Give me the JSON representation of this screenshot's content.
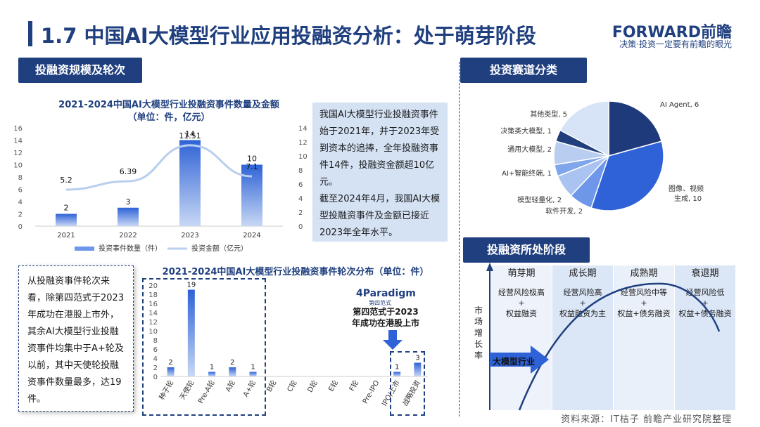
{
  "header": {
    "title": "1.7 中国AI大模型行业应用投融资分析：处于萌芽阶段",
    "logo": "FORWARD前瞻",
    "logo_tagline": "决策·投资一定要有前瞻的眼光"
  },
  "sections": {
    "scale": "投融资规模及轮次",
    "track": "投资赛道分类",
    "stage": "投融资所处阶段"
  },
  "chart1": {
    "title_line1": "2021-2024中国AI大模型行业投融资事件数量及金额",
    "title_line2": "（单位：件，亿元）"
  },
  "chart2": {
    "title": "2021-2024中国AI大模型行业投融资事件轮次分布（单位：件）"
  },
  "text_blocks": {
    "summary": "我国AI大模型行业投融资事件始于2021年，并于2023年受到资本的追捧，全年投融资事件14件，投融资金额超10亿元。",
    "summary2": "截至2024年4月，我国AI大模型投融资事件及金额已接近2023年全年水平。",
    "rounds_note": "从投融资事件轮次来看，除第四范式于2023年成功在港股上市外，其余AI大模型行业投融资事件均集中于A+轮及以前，其中天使轮投融资事件数量最多，达19件。",
    "paradigm_logo": "4Paradigm",
    "paradigm_logo_sub": "第四范式",
    "paradigm_callout": "第四范式于2023年成功在港股上市"
  },
  "chart_data": [
    {
      "type": "bar",
      "categories": [
        "2021",
        "2022",
        "2023",
        "2024"
      ],
      "series": [
        {
          "name": "投资事件数量（件）",
          "type": "bar",
          "values": [
            2,
            3,
            14,
            10
          ]
        },
        {
          "name": "投资金额（亿元）",
          "type": "line",
          "values": [
            5.2,
            6.39,
            11.51,
            7.1
          ]
        }
      ],
      "left_axis_ticks": [
        "0",
        "2",
        "4",
        "6",
        "8",
        "10",
        "12",
        "14",
        "16"
      ],
      "right_axis_ticks": [
        "0",
        "2",
        "4",
        "6",
        "8",
        "10",
        "12",
        "14"
      ],
      "ylim_left": [
        0,
        16
      ],
      "ylim_right": [
        0,
        14
      ],
      "legend": "bottom"
    },
    {
      "type": "bar",
      "categories": [
        "种子轮",
        "天使轮",
        "Pre-A轮",
        "A轮",
        "A+轮",
        "B轮",
        "C轮",
        "D轮",
        "E轮",
        "F轮",
        "Pre-IPO",
        "IPO/上市",
        "战略投资"
      ],
      "values": [
        2,
        19,
        1,
        2,
        1,
        0,
        0,
        0,
        0,
        0,
        0,
        1,
        3
      ],
      "value_labels": [
        "2",
        "19",
        "1",
        "2",
        "1",
        "",
        "",
        "",
        "",
        "",
        "",
        "1",
        "3"
      ],
      "y_ticks": [
        "0",
        "2",
        "4",
        "6",
        "8",
        "10",
        "12",
        "14",
        "16",
        "18",
        "20"
      ],
      "ylim": [
        0,
        20
      ]
    },
    {
      "type": "pie",
      "labels": [
        "AI Agent, 6",
        "图像、视频生成, 10",
        "软件开发, 2",
        "模型轻量化, 2",
        "AI+智能终端, 1",
        "通用大模型, 2",
        "决策类大模型, 1",
        "其他类型, 5"
      ],
      "values": [
        6,
        10,
        2,
        2,
        1,
        2,
        1,
        5
      ],
      "colors": [
        "#1f3a7a",
        "#2e62d6",
        "#6e97ea",
        "#aac3f1",
        "#7fa5ea",
        "#b9cdf1",
        "#203f7c",
        "#d7e3f6"
      ]
    }
  ],
  "stage_chart": {
    "stages": [
      {
        "name": "萌芽期",
        "risk": "经营风险极高",
        "plus": "+",
        "finance": "权益融资"
      },
      {
        "name": "成长期",
        "risk": "经营风险高",
        "plus": "+",
        "finance": "权益融资为主"
      },
      {
        "name": "成熟期",
        "risk": "经营风险中等",
        "plus": "+",
        "finance": "权益+债务融资"
      },
      {
        "name": "衰退期",
        "risk": "经营风险低",
        "plus": "+",
        "finance": "权益+债务融资"
      }
    ],
    "y_label": "市场增长率",
    "marker_label": "大模型行业"
  },
  "footer": {
    "source": "资料来源：IT桔子 前瞻产业研究院整理"
  }
}
